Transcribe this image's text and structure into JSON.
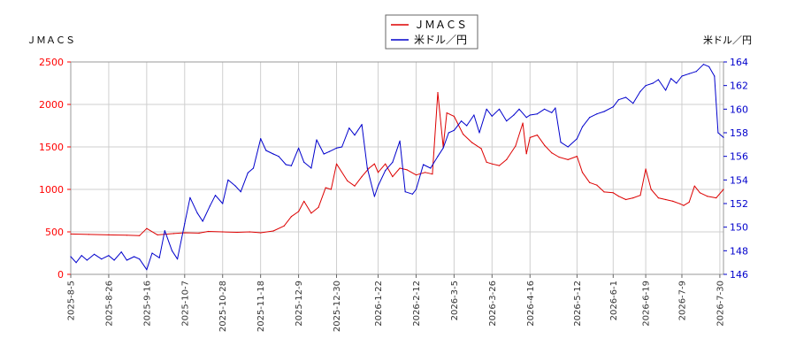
{
  "chart_data": {
    "type": "line",
    "title": "",
    "ylabel_left": "ＪＭＡＣＳ",
    "ylabel_right": "米ドル／円",
    "ylim_left": [
      0,
      2500
    ],
    "ylim_right": [
      146,
      164
    ],
    "yticks_left": [
      0,
      500,
      1000,
      1500,
      2000,
      2500
    ],
    "yticks_right": [
      146,
      148,
      150,
      152,
      154,
      156,
      158,
      160,
      162,
      164
    ],
    "xlim": [
      "2025-08-05",
      "2025-08-01"
    ],
    "xticks": [
      "2025-8-5",
      "2025-8-26",
      "2025-9-16",
      "2025-10-7",
      "2025-10-28",
      "2025-11-18",
      "2025-12-9",
      "2025-12-30",
      "2026-1-22",
      "2026-2-12",
      "2026-3-5",
      "2026-3-26",
      "2026-4-16",
      "2026-5-12",
      "2026-6-1",
      "2026-6-19",
      "2026-7-9",
      "2026-7-30"
    ],
    "xtick_dates": [
      "2025-08-05",
      "2025-08-26",
      "2025-09-16",
      "2025-10-07",
      "2025-10-28",
      "2025-11-18",
      "2025-12-09",
      "2025-12-30",
      "2026-01-22",
      "2026-02-12",
      "2026-03-05",
      "2026-03-26",
      "2026-04-16",
      "2026-05-12",
      "2026-06-01",
      "2026-06-19",
      "2026-07-09",
      "2026-07-30"
    ],
    "grid": true,
    "legend": "top-center",
    "series": [
      {
        "name": "ＪＭＡＣＳ",
        "axis": "left",
        "color": "#dd0000",
        "points": [
          [
            "2025-08-05",
            475
          ],
          [
            "2025-08-15",
            470
          ],
          [
            "2025-08-26",
            465
          ],
          [
            "2025-09-05",
            460
          ],
          [
            "2025-09-12",
            455
          ],
          [
            "2025-09-16",
            540
          ],
          [
            "2025-09-22",
            465
          ],
          [
            "2025-10-01",
            480
          ],
          [
            "2025-10-07",
            490
          ],
          [
            "2025-10-15",
            485
          ],
          [
            "2025-10-20",
            505
          ],
          [
            "2025-10-28",
            500
          ],
          [
            "2025-11-05",
            495
          ],
          [
            "2025-11-12",
            500
          ],
          [
            "2025-11-18",
            490
          ],
          [
            "2025-11-25",
            510
          ],
          [
            "2025-12-01",
            570
          ],
          [
            "2025-12-05",
            680
          ],
          [
            "2025-12-09",
            740
          ],
          [
            "2025-12-12",
            860
          ],
          [
            "2025-12-16",
            720
          ],
          [
            "2025-12-20",
            790
          ],
          [
            "2025-12-24",
            1020
          ],
          [
            "2025-12-27",
            1000
          ],
          [
            "2025-12-30",
            1300
          ],
          [
            "2026-01-05",
            1100
          ],
          [
            "2026-01-09",
            1040
          ],
          [
            "2026-01-13",
            1150
          ],
          [
            "2026-01-17",
            1250
          ],
          [
            "2026-01-20",
            1300
          ],
          [
            "2026-01-22",
            1200
          ],
          [
            "2026-01-26",
            1300
          ],
          [
            "2026-01-30",
            1150
          ],
          [
            "2026-02-03",
            1250
          ],
          [
            "2026-02-07",
            1230
          ],
          [
            "2026-02-12",
            1170
          ],
          [
            "2026-02-17",
            1200
          ],
          [
            "2026-02-21",
            1180
          ],
          [
            "2026-02-24",
            2140
          ],
          [
            "2026-02-27",
            1500
          ],
          [
            "2026-03-01",
            1900
          ],
          [
            "2026-03-05",
            1860
          ],
          [
            "2026-03-10",
            1650
          ],
          [
            "2026-03-15",
            1550
          ],
          [
            "2026-03-20",
            1480
          ],
          [
            "2026-03-23",
            1320
          ],
          [
            "2026-03-26",
            1300
          ],
          [
            "2026-03-30",
            1280
          ],
          [
            "2026-04-03",
            1350
          ],
          [
            "2026-04-08",
            1510
          ],
          [
            "2026-04-12",
            1780
          ],
          [
            "2026-04-14",
            1420
          ],
          [
            "2026-04-16",
            1610
          ],
          [
            "2026-04-20",
            1640
          ],
          [
            "2026-04-24",
            1520
          ],
          [
            "2026-04-28",
            1430
          ],
          [
            "2026-05-02",
            1380
          ],
          [
            "2026-05-07",
            1350
          ],
          [
            "2026-05-12",
            1390
          ],
          [
            "2026-05-15",
            1200
          ],
          [
            "2026-05-19",
            1080
          ],
          [
            "2026-05-23",
            1050
          ],
          [
            "2026-05-27",
            970
          ],
          [
            "2026-06-01",
            960
          ],
          [
            "2026-06-04",
            920
          ],
          [
            "2026-06-08",
            880
          ],
          [
            "2026-06-12",
            900
          ],
          [
            "2026-06-16",
            930
          ],
          [
            "2026-06-19",
            1240
          ],
          [
            "2026-06-22",
            1000
          ],
          [
            "2026-06-26",
            900
          ],
          [
            "2026-06-30",
            880
          ],
          [
            "2026-07-04",
            860
          ],
          [
            "2026-07-08",
            830
          ],
          [
            "2026-07-10",
            810
          ],
          [
            "2026-07-13",
            850
          ],
          [
            "2026-07-16",
            1040
          ],
          [
            "2026-07-19",
            960
          ],
          [
            "2026-07-23",
            920
          ],
          [
            "2026-07-28",
            900
          ],
          [
            "2026-08-01",
            1000
          ]
        ]
      },
      {
        "name": "米ドル／円",
        "axis": "right",
        "color": "#0000cc",
        "points": [
          [
            "2025-08-05",
            147.5
          ],
          [
            "2025-08-08",
            147.0
          ],
          [
            "2025-08-11",
            147.6
          ],
          [
            "2025-08-14",
            147.2
          ],
          [
            "2025-08-18",
            147.7
          ],
          [
            "2025-08-22",
            147.3
          ],
          [
            "2025-08-26",
            147.6
          ],
          [
            "2025-08-29",
            147.2
          ],
          [
            "2025-09-02",
            147.9
          ],
          [
            "2025-09-05",
            147.2
          ],
          [
            "2025-09-09",
            147.5
          ],
          [
            "2025-09-12",
            147.3
          ],
          [
            "2025-09-16",
            146.4
          ],
          [
            "2025-09-19",
            147.8
          ],
          [
            "2025-09-23",
            147.4
          ],
          [
            "2025-09-26",
            149.7
          ],
          [
            "2025-09-30",
            148.0
          ],
          [
            "2025-10-03",
            147.3
          ],
          [
            "2025-10-07",
            150.3
          ],
          [
            "2025-10-10",
            152.5
          ],
          [
            "2025-10-14",
            151.2
          ],
          [
            "2025-10-17",
            150.5
          ],
          [
            "2025-10-21",
            151.8
          ],
          [
            "2025-10-24",
            152.7
          ],
          [
            "2025-10-28",
            152.0
          ],
          [
            "2025-10-31",
            154.0
          ],
          [
            "2025-11-04",
            153.5
          ],
          [
            "2025-11-07",
            153.0
          ],
          [
            "2025-11-11",
            154.6
          ],
          [
            "2025-11-14",
            155.0
          ],
          [
            "2025-11-18",
            157.5
          ],
          [
            "2025-11-21",
            156.5
          ],
          [
            "2025-11-25",
            156.2
          ],
          [
            "2025-11-28",
            156.0
          ],
          [
            "2025-12-02",
            155.3
          ],
          [
            "2025-12-05",
            155.2
          ],
          [
            "2025-12-09",
            156.7
          ],
          [
            "2025-12-12",
            155.5
          ],
          [
            "2025-12-16",
            155.0
          ],
          [
            "2025-12-19",
            157.4
          ],
          [
            "2025-12-23",
            156.2
          ],
          [
            "2025-12-26",
            156.4
          ],
          [
            "2025-12-30",
            156.7
          ],
          [
            "2026-01-02",
            156.8
          ],
          [
            "2026-01-06",
            158.4
          ],
          [
            "2026-01-09",
            157.8
          ],
          [
            "2026-01-13",
            158.7
          ],
          [
            "2026-01-16",
            155.0
          ],
          [
            "2026-01-20",
            152.6
          ],
          [
            "2026-01-22",
            153.5
          ],
          [
            "2026-01-26",
            154.8
          ],
          [
            "2026-01-30",
            155.5
          ],
          [
            "2026-02-03",
            157.3
          ],
          [
            "2026-02-06",
            153.0
          ],
          [
            "2026-02-10",
            152.8
          ],
          [
            "2026-02-12",
            153.2
          ],
          [
            "2026-02-16",
            155.3
          ],
          [
            "2026-02-20",
            155.0
          ],
          [
            "2026-02-24",
            156.0
          ],
          [
            "2026-02-27",
            156.7
          ],
          [
            "2026-03-02",
            158.0
          ],
          [
            "2026-03-05",
            158.2
          ],
          [
            "2026-03-09",
            159.0
          ],
          [
            "2026-03-12",
            158.6
          ],
          [
            "2026-03-16",
            159.5
          ],
          [
            "2026-03-19",
            158.0
          ],
          [
            "2026-03-23",
            160.0
          ],
          [
            "2026-03-26",
            159.4
          ],
          [
            "2026-03-30",
            160.0
          ],
          [
            "2026-04-03",
            159.0
          ],
          [
            "2026-04-07",
            159.5
          ],
          [
            "2026-04-10",
            160.0
          ],
          [
            "2026-04-14",
            159.3
          ],
          [
            "2026-04-16",
            159.5
          ],
          [
            "2026-04-20",
            159.6
          ],
          [
            "2026-04-24",
            160.0
          ],
          [
            "2026-04-28",
            159.7
          ],
          [
            "2026-04-30",
            160.1
          ],
          [
            "2026-05-03",
            157.2
          ],
          [
            "2026-05-07",
            156.8
          ],
          [
            "2026-05-12",
            157.5
          ],
          [
            "2026-05-15",
            158.5
          ],
          [
            "2026-05-19",
            159.3
          ],
          [
            "2026-05-23",
            159.6
          ],
          [
            "2026-05-27",
            159.8
          ],
          [
            "2026-06-01",
            160.2
          ],
          [
            "2026-06-04",
            160.8
          ],
          [
            "2026-06-08",
            161.0
          ],
          [
            "2026-06-12",
            160.5
          ],
          [
            "2026-06-16",
            161.5
          ],
          [
            "2026-06-19",
            162.0
          ],
          [
            "2026-06-23",
            162.2
          ],
          [
            "2026-06-26",
            162.5
          ],
          [
            "2026-06-30",
            161.6
          ],
          [
            "2026-07-03",
            162.6
          ],
          [
            "2026-07-06",
            162.2
          ],
          [
            "2026-07-09",
            162.8
          ],
          [
            "2026-07-13",
            163.0
          ],
          [
            "2026-07-17",
            163.2
          ],
          [
            "2026-07-21",
            163.8
          ],
          [
            "2026-07-24",
            163.6
          ],
          [
            "2026-07-27",
            162.8
          ],
          [
            "2026-07-29",
            158.0
          ],
          [
            "2026-08-01",
            157.6
          ]
        ]
      }
    ]
  }
}
